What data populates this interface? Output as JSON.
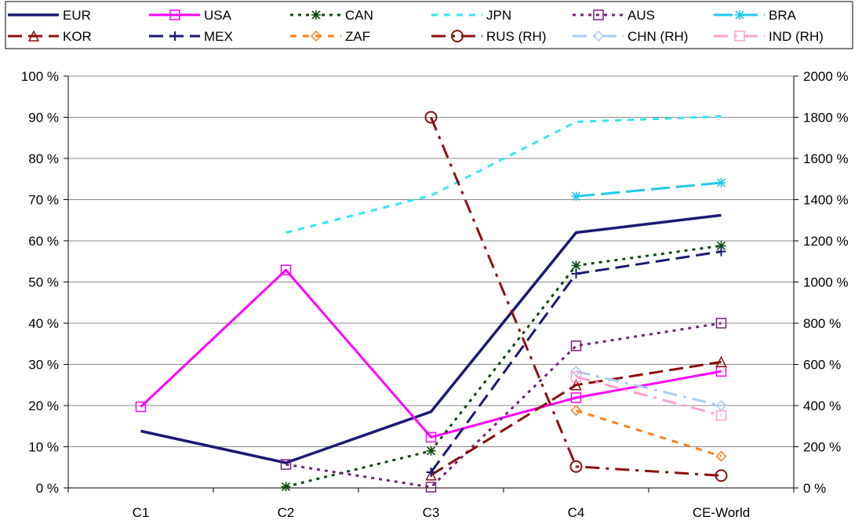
{
  "chart_data": {
    "type": "line",
    "categories": [
      "C1",
      "C2",
      "C3",
      "C4",
      "CE-World"
    ],
    "y_left": {
      "min": 0,
      "max": 100,
      "step": 10,
      "suffix": " %"
    },
    "y_right": {
      "min": 0,
      "max": 2000,
      "step": 200,
      "suffix": " %"
    },
    "grid": true,
    "legend_position": "top",
    "series": [
      {
        "name": "EUR",
        "axis": "left",
        "color": "#1a1a72",
        "dash": "solid",
        "width": 3.5,
        "marker": "none",
        "values": [
          13.8,
          6.1,
          18.5,
          62,
          66.2
        ]
      },
      {
        "name": "USA",
        "axis": "left",
        "color": "#ff00ff",
        "dash": "solid",
        "width": 3,
        "marker": "square",
        "values": [
          19.7,
          52.9,
          12.3,
          21.9,
          28.3
        ]
      },
      {
        "name": "CAN",
        "axis": "left",
        "color": "#0f4a0f",
        "dash": "dot",
        "width": 3,
        "marker": "star",
        "values": [
          null,
          0.3,
          9.0,
          54.0,
          58.8
        ]
      },
      {
        "name": "JPN",
        "axis": "left",
        "color": "#33e6f0",
        "dash": "dash-short",
        "width": 3,
        "marker": "none",
        "values": [
          null,
          62.0,
          71.0,
          88.9,
          90.2
        ]
      },
      {
        "name": "AUS",
        "axis": "left",
        "color": "#7a1f7a",
        "dash": "dot",
        "width": 3,
        "marker": "square",
        "values": [
          null,
          5.7,
          0.2,
          34.5,
          40.0
        ]
      },
      {
        "name": "BRA",
        "axis": "left",
        "color": "#22c8ee",
        "dash": "dash-long",
        "width": 3,
        "marker": "star",
        "values": [
          null,
          null,
          null,
          70.8,
          74.1
        ]
      },
      {
        "name": "KOR",
        "axis": "left",
        "color": "#8b1010",
        "dash": "dash",
        "width": 3,
        "marker": "triangle",
        "values": [
          null,
          null,
          3.1,
          25.0,
          30.6
        ]
      },
      {
        "name": "MEX",
        "axis": "left",
        "color": "#1a1a72",
        "dash": "dash",
        "width": 3,
        "marker": "plus",
        "values": [
          null,
          null,
          3.8,
          52.0,
          57.4
        ]
      },
      {
        "name": "ZAF",
        "axis": "left",
        "color": "#ff7f1e",
        "dash": "dash-short",
        "width": 3,
        "marker": "diamond",
        "values": [
          null,
          null,
          null,
          18.8,
          7.7
        ]
      },
      {
        "name": "RUS (RH)",
        "axis": "right",
        "color": "#8b1010",
        "dash": "dash-dot",
        "width": 3,
        "marker": "circle",
        "values": [
          null,
          null,
          1800,
          104,
          60
        ]
      },
      {
        "name": "CHN (RH)",
        "axis": "right",
        "color": "#a8cdf2",
        "dash": "dash-dot",
        "width": 3,
        "marker": "diamond",
        "values": [
          null,
          null,
          null,
          566,
          400
        ]
      },
      {
        "name": "IND (RH)",
        "axis": "right",
        "color": "#ff9fcf",
        "dash": "dash-dot",
        "width": 3,
        "marker": "square",
        "values": [
          null,
          null,
          null,
          540,
          352
        ]
      }
    ]
  }
}
